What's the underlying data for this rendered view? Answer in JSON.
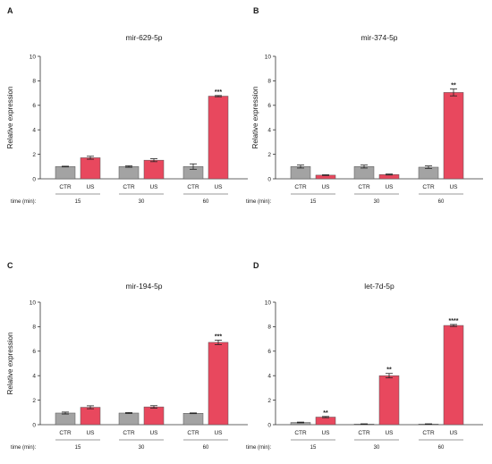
{
  "time_label": "time (min):",
  "colors": {
    "ctr": "#a3a3a3",
    "us": "#e8485e",
    "axis": "#333333",
    "error": "#222222"
  },
  "chart_data": [
    {
      "type": "bar",
      "panel": "A",
      "title": "mir-629-5p",
      "ylabel": "Relative expression",
      "ylim": [
        0,
        10
      ],
      "yticks": [
        0,
        2,
        4,
        6,
        8,
        10
      ],
      "categories": [
        "CTR",
        "US",
        "CTR",
        "US",
        "CTR",
        "US"
      ],
      "groups": [
        "15",
        "30",
        "60"
      ],
      "values": [
        1.0,
        1.72,
        1.0,
        1.52,
        1.0,
        6.75
      ],
      "errors": [
        0.03,
        0.12,
        0.06,
        0.12,
        0.22,
        0.05
      ],
      "significance": [
        "",
        "",
        "",
        "",
        "",
        "***"
      ]
    },
    {
      "type": "bar",
      "panel": "B",
      "title": "mir-374-5p",
      "ylabel": "Relative expression",
      "ylim": [
        0,
        10
      ],
      "yticks": [
        0,
        2,
        4,
        6,
        8,
        10
      ],
      "categories": [
        "CTR",
        "US",
        "CTR",
        "US",
        "CTR",
        "US"
      ],
      "groups": [
        "15",
        "30",
        "60"
      ],
      "values": [
        1.0,
        0.3,
        1.0,
        0.35,
        0.95,
        7.05
      ],
      "errors": [
        0.12,
        0.03,
        0.12,
        0.04,
        0.1,
        0.28
      ],
      "significance": [
        "",
        "",
        "",
        "",
        "",
        "**"
      ]
    },
    {
      "type": "bar",
      "panel": "C",
      "title": "mir-194-5p",
      "ylabel": "Relative expression",
      "ylim": [
        0,
        10
      ],
      "yticks": [
        0,
        2,
        4,
        6,
        8,
        10
      ],
      "categories": [
        "CTR",
        "US",
        "CTR",
        "US",
        "CTR",
        "US"
      ],
      "groups": [
        "15",
        "30",
        "60"
      ],
      "values": [
        0.95,
        1.42,
        0.95,
        1.45,
        0.93,
        6.72
      ],
      "errors": [
        0.08,
        0.12,
        0.04,
        0.1,
        0.03,
        0.18
      ],
      "significance": [
        "",
        "",
        "",
        "",
        "",
        "***"
      ]
    },
    {
      "type": "bar",
      "panel": "D",
      "title": "let-7d-5p",
      "ylabel": "",
      "ylim": [
        0,
        10
      ],
      "yticks": [
        0,
        2,
        4,
        6,
        8,
        10
      ],
      "categories": [
        "CTR",
        "US",
        "CTR",
        "US",
        "CTR",
        "US"
      ],
      "groups": [
        "15",
        "30",
        "60"
      ],
      "values": [
        0.18,
        0.62,
        0.05,
        4.0,
        0.05,
        8.1
      ],
      "errors": [
        0.03,
        0.05,
        0.02,
        0.18,
        0.02,
        0.08
      ],
      "significance": [
        "",
        "**",
        "",
        "**",
        "",
        "****"
      ]
    }
  ]
}
